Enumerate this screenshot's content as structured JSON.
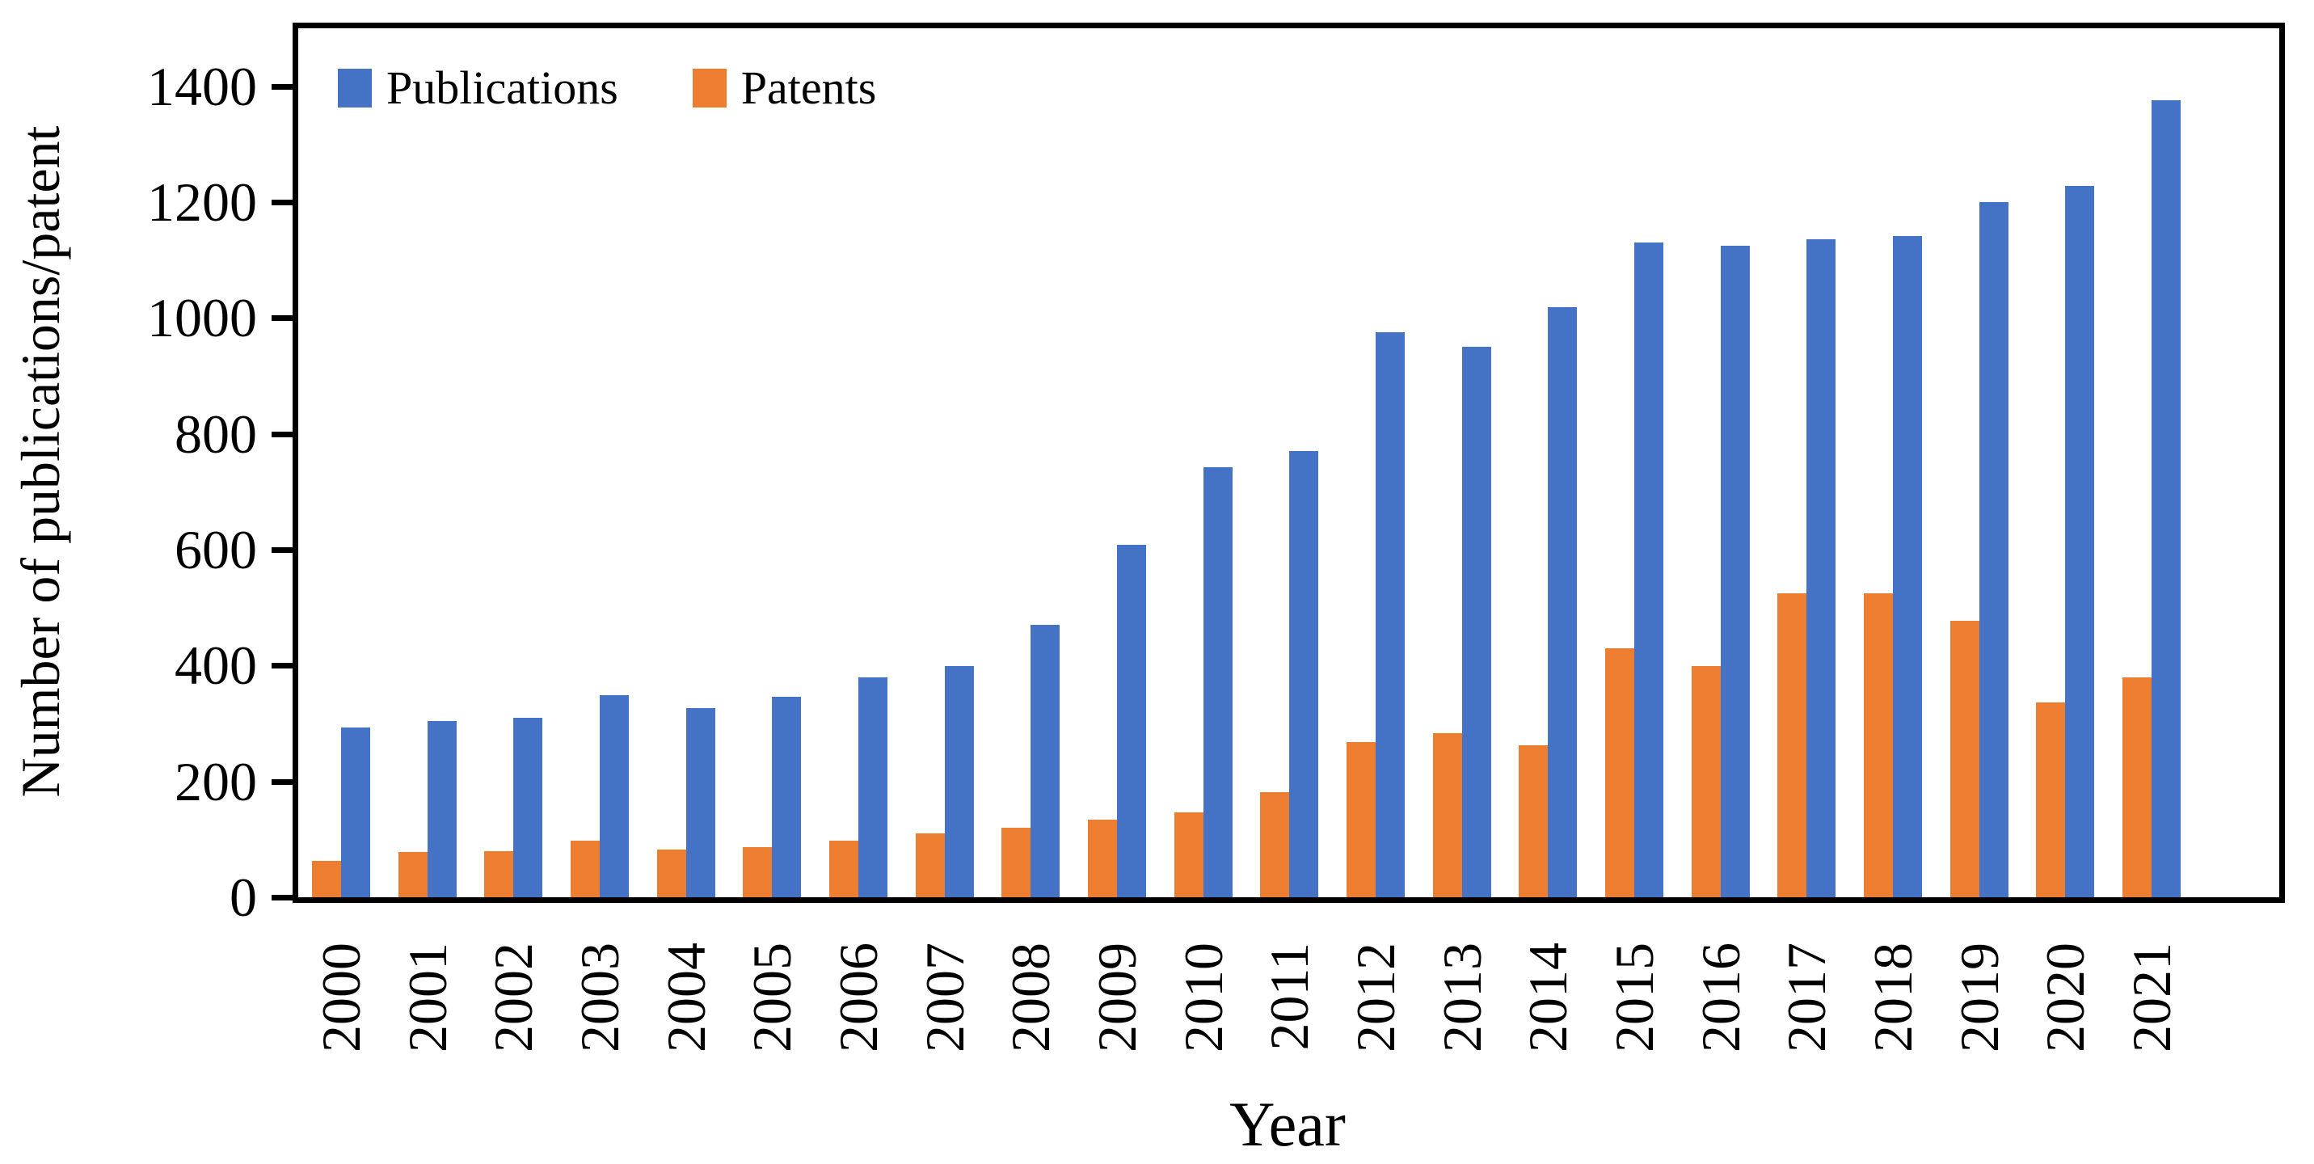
{
  "chart_data": {
    "type": "bar",
    "title": "",
    "xlabel": "Year",
    "ylabel": "Number of publications/patent",
    "categories": [
      "2000",
      "2001",
      "2002",
      "2003",
      "2004",
      "2005",
      "2006",
      "2007",
      "2008",
      "2009",
      "2010",
      "2011",
      "2012",
      "2013",
      "2014",
      "2015",
      "2016",
      "2017",
      "2018",
      "2019",
      "2020",
      "2021"
    ],
    "series": [
      {
        "name": "Publications",
        "color": "#4472C4",
        "values": [
          293,
          304,
          310,
          349,
          326,
          346,
          379,
          399,
          470,
          608,
          742,
          770,
          975,
          950,
          1018,
          1130,
          1125,
          1136,
          1142,
          1200,
          1228,
          1376
        ]
      },
      {
        "name": "Patents",
        "color": "#ED7D31",
        "values": [
          63,
          78,
          79,
          98,
          82,
          87,
          97,
          110,
          120,
          134,
          146,
          181,
          268,
          283,
          262,
          430,
          399,
          525,
          525,
          477,
          336,
          380
        ]
      }
    ],
    "layout": {
      "group_order_left_to_right": [
        "Patents",
        "Publications"
      ],
      "legend_order": [
        "Publications",
        "Patents"
      ],
      "legend_position": "inside-top-left",
      "ylim": [
        0,
        1400
      ],
      "ytick_step": 200,
      "frame_value_max": 1500,
      "grid": false,
      "x_labels_rotated_degrees": 90,
      "axis_color": "#000000"
    }
  }
}
